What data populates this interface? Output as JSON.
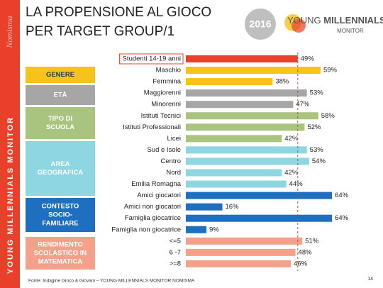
{
  "chart_data": {
    "type": "barh",
    "title_lines": [
      "LA PROPENSIONE AL GIOCO",
      "PER TARGET GROUP/1"
    ],
    "year": "2016",
    "logo": {
      "line1_a": "YOUNG ",
      "line1_b": "MILLENNIALS",
      "line2": "MONITOR"
    },
    "side_brand": "Nomisma",
    "side_text": "YOUNG MILLENNIALS MONITOR",
    "source": "Fonte: Indagine Gioco & Giovani – YOUNG MILLENNIALS MONITOR NOMISMA",
    "page_number": "14",
    "categories": [
      "Studenti 14-19 anni",
      "Maschio",
      "Femmina",
      "Maggiorenni",
      "Minorenni",
      "Istituti Tecnici",
      "Istituti Professionali",
      "Licei",
      "Sud e Isole",
      "Centro",
      "Nord",
      "Emilia Romagna",
      "Amici giocatori",
      "Amici non giocatori",
      "Famiglia giocatrice",
      "Famiglia non giocatrice",
      "<=5",
      "6 -7",
      ">=8"
    ],
    "values": [
      49,
      59,
      38,
      53,
      47,
      58,
      52,
      42,
      53,
      54,
      42,
      44,
      64,
      16,
      64,
      9,
      51,
      48,
      46
    ],
    "value_labels": [
      "49%",
      "59%",
      "38%",
      "53%",
      "47%",
      "58%",
      "52%",
      "42%",
      "53%",
      "54%",
      "42%",
      "44%",
      "64%",
      "16%",
      "64%",
      "9%",
      "51%",
      "48%",
      "46%"
    ],
    "colors": [
      "#e8402a",
      "#f7c31a",
      "#f7c31a",
      "#a6a6a6",
      "#a6a6a6",
      "#a9c47f",
      "#a9c47f",
      "#a9c47f",
      "#8fd6e3",
      "#8fd6e3",
      "#8fd6e3",
      "#8fd6e3",
      "#1f6fc0",
      "#1f6fc0",
      "#1f6fc0",
      "#1f6fc0",
      "#f4a08a",
      "#f4a08a",
      "#f4a08a"
    ],
    "groups": [
      {
        "lines": [
          "GENERE"
        ],
        "color": "#f7c31a",
        "text_color": "#1f3864"
      },
      {
        "lines": [
          "ETÀ"
        ],
        "color": "#a6a6a6",
        "text_color": "#ffffff"
      },
      {
        "lines": [
          "TIPO DI",
          "SCUOLA"
        ],
        "color": "#a9c47f",
        "text_color": "#ffffff"
      },
      {
        "lines": [
          "AREA",
          "GEOGRAFICA"
        ],
        "color": "#8fd6e3",
        "text_color": "#ffffff"
      },
      {
        "lines": [
          "CONTESTO",
          "SOCIO-",
          "FAMILIARE"
        ],
        "color": "#1f6fc0",
        "text_color": "#ffffff"
      },
      {
        "lines": [
          "RENDIMENTO",
          "SCOLASTICO IN",
          "MATEMATICA"
        ],
        "color": "#f4a08a",
        "text_color": "#ffffff"
      }
    ]
  }
}
